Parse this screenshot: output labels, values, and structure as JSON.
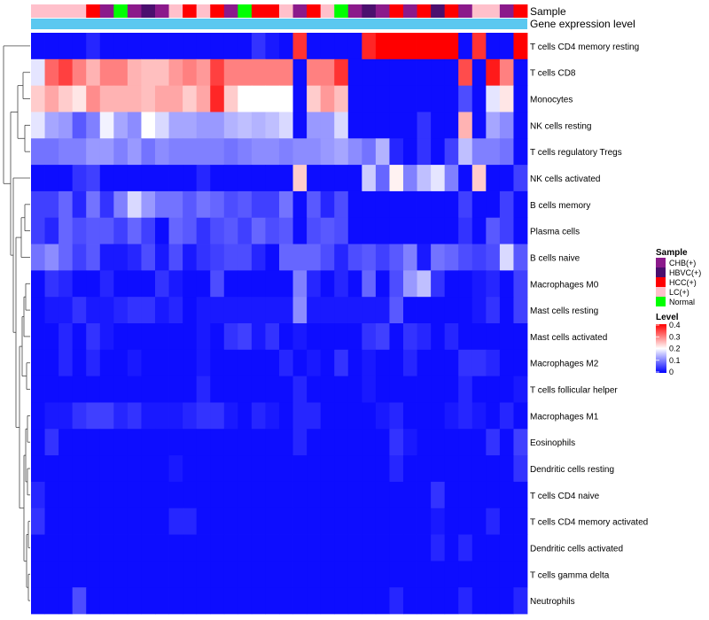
{
  "chart_data": {
    "type": "heatmap",
    "annotation_tracks": [
      "Sample",
      "Gene expression level"
    ],
    "rows": [
      "T cells CD4 memory resting",
      "T cells CD8",
      "Monocytes",
      "NK cells resting",
      "T cells regulatory  Tregs",
      "NK cells activated",
      "B cells memory",
      "Plasma cells",
      "B cells naive",
      "Macrophages M0",
      "Mast cells resting",
      "Mast cells activated",
      "Macrophages M2",
      "T cells follicular helper",
      "Macrophages M1",
      "Eosinophils",
      "Dendritic cells resting",
      "T cells CD4 naive",
      "T cells CD4 memory activated",
      "Dendritic cells activated",
      "T cells gamma delta",
      "Neutrophils"
    ],
    "sample_legend": {
      "title": "Sample",
      "entries": [
        {
          "label": "CHB(+)",
          "color": "#8b1a8b"
        },
        {
          "label": "HBVC(+)",
          "color": "#4b0f6e"
        },
        {
          "label": "HCC(+)",
          "color": "#ff0000"
        },
        {
          "label": "LC(+)",
          "color": "#ffc0cb"
        },
        {
          "label": "Normal",
          "color": "#00ff00"
        }
      ]
    },
    "level_legend": {
      "title": "Level",
      "ticks": [
        "0.4",
        "0.3",
        "0.2",
        "0.1",
        "0"
      ],
      "range": [
        0,
        0.4
      ],
      "colors": [
        "#0000ff",
        "#ffffff",
        "#ff0000"
      ]
    },
    "column_samples": [
      "LC(+)",
      "LC(+)",
      "LC(+)",
      "LC(+)",
      "HCC(+)",
      "CHB(+)",
      "Normal",
      "CHB(+)",
      "HBVC(+)",
      "CHB(+)",
      "LC(+)",
      "HCC(+)",
      "LC(+)",
      "HCC(+)",
      "CHB(+)",
      "Normal",
      "HCC(+)",
      "HCC(+)",
      "LC(+)",
      "CHB(+)",
      "HCC(+)",
      "LC(+)",
      "Normal",
      "CHB(+)",
      "HBVC(+)",
      "CHB(+)",
      "HCC(+)",
      "CHB(+)",
      "HCC(+)",
      "HBVC(+)",
      "HCC(+)",
      "CHB(+)",
      "LC(+)",
      "LC(+)",
      "CHB(+)",
      "HCC(+)"
    ],
    "gene_expression_level_color": "#5bc8f0",
    "values": [
      [
        0.01,
        0.01,
        0.01,
        0.01,
        0.03,
        0.01,
        0.01,
        0.01,
        0.01,
        0.01,
        0.01,
        0.01,
        0.01,
        0.01,
        0.01,
        0.01,
        0.04,
        0.02,
        0.01,
        0.36,
        0.01,
        0.01,
        0.01,
        0.01,
        0.37,
        0.4,
        0.4,
        0.4,
        0.4,
        0.4,
        0.4,
        0.01,
        0.36,
        0.01,
        0.01,
        0.4
      ],
      [
        0.18,
        0.32,
        0.35,
        0.3,
        0.26,
        0.3,
        0.3,
        0.26,
        0.25,
        0.25,
        0.28,
        0.3,
        0.28,
        0.35,
        0.3,
        0.3,
        0.3,
        0.3,
        0.3,
        0.01,
        0.3,
        0.3,
        0.36,
        0.01,
        0.01,
        0.01,
        0.01,
        0.01,
        0.01,
        0.01,
        0.01,
        0.34,
        0.01,
        0.38,
        0.3,
        0.01
      ],
      [
        0.24,
        0.27,
        0.24,
        0.22,
        0.29,
        0.26,
        0.26,
        0.26,
        0.25,
        0.27,
        0.27,
        0.24,
        0.27,
        0.37,
        0.24,
        0.2,
        0.2,
        0.2,
        0.2,
        0.01,
        0.24,
        0.28,
        0.25,
        0.01,
        0.01,
        0.01,
        0.01,
        0.01,
        0.01,
        0.01,
        0.01,
        0.06,
        0.01,
        0.18,
        0.22,
        0.01
      ],
      [
        0.18,
        0.13,
        0.12,
        0.07,
        0.1,
        0.19,
        0.13,
        0.11,
        0.2,
        0.17,
        0.13,
        0.13,
        0.12,
        0.12,
        0.14,
        0.15,
        0.14,
        0.15,
        0.17,
        0.01,
        0.12,
        0.12,
        0.17,
        0.01,
        0.01,
        0.01,
        0.01,
        0.01,
        0.04,
        0.01,
        0.01,
        0.26,
        0.01,
        0.13,
        0.11,
        0.01
      ],
      [
        0.09,
        0.09,
        0.1,
        0.1,
        0.12,
        0.12,
        0.1,
        0.12,
        0.09,
        0.11,
        0.1,
        0.1,
        0.1,
        0.1,
        0.09,
        0.1,
        0.11,
        0.11,
        0.1,
        0.11,
        0.11,
        0.12,
        0.13,
        0.11,
        0.09,
        0.14,
        0.03,
        0.01,
        0.04,
        0.01,
        0.05,
        0.15,
        0.1,
        0.1,
        0.09,
        0.01
      ],
      [
        0.01,
        0.01,
        0.01,
        0.04,
        0.05,
        0.01,
        0.01,
        0.01,
        0.01,
        0.01,
        0.01,
        0.01,
        0.03,
        0.01,
        0.01,
        0.01,
        0.01,
        0.01,
        0.01,
        0.24,
        0.01,
        0.01,
        0.01,
        0.01,
        0.16,
        0.08,
        0.21,
        0.1,
        0.15,
        0.18,
        0.1,
        0.01,
        0.24,
        0.01,
        0.01,
        0.05
      ],
      [
        0.05,
        0.05,
        0.08,
        0.03,
        0.09,
        0.04,
        0.1,
        0.17,
        0.12,
        0.09,
        0.09,
        0.07,
        0.09,
        0.08,
        0.06,
        0.07,
        0.05,
        0.05,
        0.09,
        0.01,
        0.07,
        0.03,
        0.06,
        0.01,
        0.01,
        0.01,
        0.01,
        0.01,
        0.01,
        0.01,
        0.01,
        0.05,
        0.01,
        0.01,
        0.05,
        0.01
      ],
      [
        0.05,
        0.03,
        0.08,
        0.06,
        0.07,
        0.07,
        0.05,
        0.08,
        0.05,
        0.01,
        0.08,
        0.07,
        0.04,
        0.06,
        0.07,
        0.05,
        0.08,
        0.06,
        0.07,
        0.01,
        0.06,
        0.07,
        0.06,
        0.01,
        0.01,
        0.01,
        0.01,
        0.01,
        0.01,
        0.01,
        0.01,
        0.04,
        0.01,
        0.07,
        0.05,
        0.01
      ],
      [
        0.09,
        0.11,
        0.08,
        0.05,
        0.07,
        0.02,
        0.02,
        0.03,
        0.06,
        0.02,
        0.06,
        0.02,
        0.04,
        0.05,
        0.06,
        0.06,
        0.03,
        0.01,
        0.08,
        0.08,
        0.08,
        0.06,
        0.03,
        0.06,
        0.07,
        0.05,
        0.07,
        0.1,
        0.02,
        0.09,
        0.08,
        0.06,
        0.05,
        0.06,
        0.17,
        0.07
      ],
      [
        0.01,
        0.04,
        0.03,
        0.01,
        0.01,
        0.03,
        0.01,
        0.01,
        0.01,
        0.04,
        0.02,
        0.01,
        0.01,
        0.06,
        0.01,
        0.01,
        0.01,
        0.01,
        0.01,
        0.1,
        0.03,
        0.01,
        0.03,
        0.01,
        0.08,
        0.01,
        0.06,
        0.12,
        0.15,
        0.04,
        0.01,
        0.01,
        0.02,
        0.03,
        0.01,
        0.05
      ],
      [
        0.01,
        0.02,
        0.02,
        0.04,
        0.02,
        0.02,
        0.03,
        0.04,
        0.04,
        0.02,
        0.03,
        0.01,
        0.02,
        0.02,
        0.02,
        0.02,
        0.02,
        0.02,
        0.02,
        0.11,
        0.02,
        0.02,
        0.02,
        0.02,
        0.02,
        0.02,
        0.07,
        0.01,
        0.01,
        0.01,
        0.01,
        0.01,
        0.02,
        0.04,
        0.01,
        0.05
      ],
      [
        0.01,
        0.01,
        0.03,
        0.01,
        0.04,
        0.02,
        0.01,
        0.01,
        0.01,
        0.01,
        0.01,
        0.01,
        0.02,
        0.01,
        0.04,
        0.05,
        0.02,
        0.04,
        0.01,
        0.02,
        0.01,
        0.01,
        0.01,
        0.01,
        0.04,
        0.05,
        0.01,
        0.04,
        0.03,
        0.01,
        0.03,
        0.01,
        0.01,
        0.01,
        0.01,
        0.01
      ],
      [
        0.01,
        0.01,
        0.03,
        0.01,
        0.03,
        0.01,
        0.01,
        0.02,
        0.01,
        0.01,
        0.01,
        0.01,
        0.02,
        0.01,
        0.01,
        0.01,
        0.01,
        0.01,
        0.03,
        0.01,
        0.02,
        0.01,
        0.04,
        0.01,
        0.02,
        0.01,
        0.01,
        0.03,
        0.01,
        0.01,
        0.01,
        0.04,
        0.04,
        0.03,
        0.01,
        0.01
      ],
      [
        0.01,
        0.01,
        0.01,
        0.01,
        0.01,
        0.01,
        0.01,
        0.01,
        0.01,
        0.01,
        0.01,
        0.01,
        0.03,
        0.01,
        0.01,
        0.01,
        0.01,
        0.01,
        0.01,
        0.03,
        0.01,
        0.01,
        0.01,
        0.01,
        0.02,
        0.01,
        0.01,
        0.01,
        0.01,
        0.01,
        0.01,
        0.03,
        0.01,
        0.01,
        0.01,
        0.02
      ],
      [
        0.01,
        0.02,
        0.02,
        0.04,
        0.05,
        0.05,
        0.03,
        0.04,
        0.02,
        0.02,
        0.02,
        0.03,
        0.04,
        0.04,
        0.02,
        0.01,
        0.03,
        0.02,
        0.01,
        0.03,
        0.03,
        0.01,
        0.01,
        0.01,
        0.01,
        0.02,
        0.03,
        0.01,
        0.01,
        0.01,
        0.02,
        0.03,
        0.02,
        0.01,
        0.03,
        0.01
      ],
      [
        0.01,
        0.04,
        0.01,
        0.01,
        0.01,
        0.01,
        0.01,
        0.01,
        0.01,
        0.01,
        0.01,
        0.01,
        0.01,
        0.01,
        0.01,
        0.01,
        0.01,
        0.01,
        0.01,
        0.03,
        0.01,
        0.01,
        0.01,
        0.01,
        0.01,
        0.01,
        0.04,
        0.02,
        0.01,
        0.01,
        0.01,
        0.01,
        0.01,
        0.04,
        0.01,
        0.05
      ],
      [
        0.01,
        0.01,
        0.01,
        0.01,
        0.01,
        0.01,
        0.01,
        0.01,
        0.01,
        0.01,
        0.02,
        0.01,
        0.01,
        0.01,
        0.01,
        0.01,
        0.01,
        0.01,
        0.01,
        0.01,
        0.01,
        0.01,
        0.01,
        0.01,
        0.01,
        0.01,
        0.03,
        0.01,
        0.01,
        0.01,
        0.01,
        0.01,
        0.01,
        0.01,
        0.01,
        0.04
      ],
      [
        0.03,
        0.01,
        0.01,
        0.01,
        0.01,
        0.01,
        0.01,
        0.01,
        0.01,
        0.01,
        0.01,
        0.01,
        0.01,
        0.01,
        0.01,
        0.01,
        0.01,
        0.01,
        0.01,
        0.01,
        0.01,
        0.01,
        0.01,
        0.01,
        0.01,
        0.01,
        0.01,
        0.01,
        0.01,
        0.04,
        0.01,
        0.01,
        0.01,
        0.01,
        0.01,
        0.01
      ],
      [
        0.04,
        0.01,
        0.01,
        0.01,
        0.01,
        0.01,
        0.01,
        0.01,
        0.01,
        0.01,
        0.03,
        0.03,
        0.01,
        0.01,
        0.01,
        0.01,
        0.01,
        0.01,
        0.01,
        0.01,
        0.01,
        0.01,
        0.01,
        0.01,
        0.01,
        0.01,
        0.01,
        0.01,
        0.01,
        0.02,
        0.01,
        0.01,
        0.01,
        0.03,
        0.01,
        0.01
      ],
      [
        0.01,
        0.01,
        0.01,
        0.01,
        0.01,
        0.01,
        0.01,
        0.01,
        0.01,
        0.01,
        0.01,
        0.01,
        0.01,
        0.01,
        0.01,
        0.01,
        0.01,
        0.01,
        0.01,
        0.01,
        0.01,
        0.01,
        0.01,
        0.01,
        0.01,
        0.01,
        0.01,
        0.01,
        0.01,
        0.03,
        0.01,
        0.03,
        0.01,
        0.01,
        0.01,
        0.01
      ],
      [
        0.01,
        0.01,
        0.01,
        0.01,
        0.01,
        0.01,
        0.01,
        0.01,
        0.01,
        0.01,
        0.01,
        0.01,
        0.01,
        0.01,
        0.01,
        0.01,
        0.01,
        0.01,
        0.01,
        0.01,
        0.01,
        0.01,
        0.01,
        0.01,
        0.01,
        0.01,
        0.01,
        0.01,
        0.01,
        0.01,
        0.01,
        0.01,
        0.01,
        0.01,
        0.01,
        0.01
      ],
      [
        0.01,
        0.01,
        0.01,
        0.06,
        0.01,
        0.01,
        0.01,
        0.01,
        0.01,
        0.01,
        0.01,
        0.01,
        0.01,
        0.01,
        0.01,
        0.01,
        0.01,
        0.01,
        0.01,
        0.01,
        0.01,
        0.01,
        0.01,
        0.01,
        0.01,
        0.01,
        0.03,
        0.01,
        0.01,
        0.01,
        0.01,
        0.03,
        0.01,
        0.01,
        0.01,
        0.03
      ]
    ]
  }
}
